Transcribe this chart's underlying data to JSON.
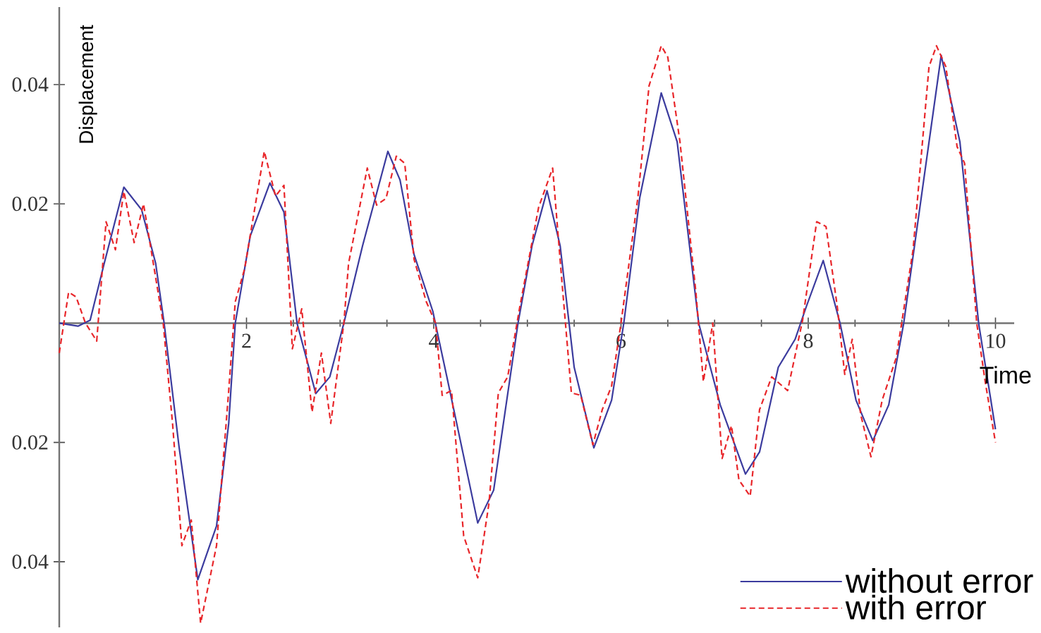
{
  "chart_data": {
    "type": "line",
    "xlabel": "Time",
    "ylabel": "Displacement",
    "xlim": [
      0,
      10.2
    ],
    "ylim": [
      -0.051,
      0.053
    ],
    "xticks": [
      2,
      4,
      6,
      8,
      10
    ],
    "yticks": [
      {
        "value": -0.04,
        "label": "0.04"
      },
      {
        "value": -0.02,
        "label": "0.02"
      },
      0.02,
      0.04
    ],
    "legend": "bottom right",
    "grid": false,
    "marker": "none",
    "series": [
      {
        "name": "without error",
        "color": "#3b3b9e",
        "line_style": "solid",
        "x": [
          0,
          0.2,
          0.33,
          0.48,
          0.69,
          0.88,
          1.03,
          1.12,
          1.28,
          1.48,
          1.68,
          1.81,
          1.88,
          2.04,
          2.25,
          2.4,
          2.54,
          2.74,
          2.89,
          3.04,
          3.24,
          3.51,
          3.64,
          3.79,
          3.99,
          4.14,
          4.47,
          4.64,
          4.9,
          5.05,
          5.21,
          5.35,
          5.5,
          5.71,
          5.9,
          6.03,
          6.2,
          6.43,
          6.6,
          6.83,
          7.06,
          7.33,
          7.48,
          7.68,
          7.86,
          7.98,
          8.16,
          8.34,
          8.51,
          8.69,
          8.86,
          9.02,
          9.22,
          9.42,
          9.62,
          9.82,
          10.0
        ],
        "values": [
          0,
          -0.0005,
          0.0005,
          0.01,
          0.0228,
          0.019,
          0.01,
          0,
          -0.0208,
          -0.043,
          -0.034,
          -0.0168,
          0,
          0.0146,
          0.0235,
          0.0186,
          0,
          -0.0118,
          -0.009,
          0,
          0.013,
          0.0288,
          0.024,
          0.0115,
          0.002,
          -0.009,
          -0.0335,
          -0.028,
          0,
          0.013,
          0.0222,
          0.013,
          -0.0074,
          -0.0209,
          -0.0129,
          0,
          0.021,
          0.0386,
          0.0304,
          0,
          -0.0137,
          -0.0253,
          -0.0216,
          -0.0074,
          -0.0027,
          0.0028,
          0.0105,
          0,
          -0.0129,
          -0.0197,
          -0.0137,
          0,
          0.0225,
          0.0449,
          0.0304,
          0,
          -0.0178
        ]
      },
      {
        "name": "with error",
        "color": "#e8262a",
        "line_style": "dashed",
        "x": [
          0,
          0.1,
          0.18,
          0.28,
          0.4,
          0.5,
          0.6,
          0.69,
          0.8,
          0.9,
          1.11,
          1.21,
          1.31,
          1.41,
          1.51,
          1.68,
          1.81,
          1.88,
          1.98,
          2.19,
          2.31,
          2.4,
          2.49,
          2.59,
          2.7,
          2.8,
          2.9,
          3.04,
          3.09,
          3.29,
          3.39,
          3.49,
          3.6,
          3.69,
          3.79,
          3.92,
          4.02,
          4.09,
          4.19,
          4.32,
          4.47,
          4.59,
          4.69,
          4.79,
          4.92,
          5.12,
          5.27,
          5.37,
          5.47,
          5.57,
          5.7,
          5.8,
          5.9,
          6.0,
          6.18,
          6.3,
          6.43,
          6.5,
          6.63,
          6.7,
          6.8,
          6.88,
          6.98,
          7.08,
          7.18,
          7.26,
          7.38,
          7.48,
          7.61,
          7.78,
          7.94,
          8.09,
          8.19,
          8.31,
          8.39,
          8.47,
          8.56,
          8.67,
          8.79,
          8.94,
          9.12,
          9.29,
          9.37,
          9.47,
          9.59,
          9.67,
          9.8,
          9.89,
          10.0
        ],
        "values": [
          -0.005,
          0.0052,
          0.0044,
          0,
          -0.003,
          0.017,
          0.0123,
          0.0221,
          0.0135,
          0.02,
          0,
          -0.0168,
          -0.0373,
          -0.033,
          -0.0503,
          -0.0373,
          -0.0113,
          0.0036,
          0.0091,
          0.0288,
          0.0213,
          0.0231,
          -0.0043,
          0.0024,
          -0.0149,
          -0.005,
          -0.0168,
          0,
          0.01,
          0.026,
          0.0198,
          0.0209,
          0.028,
          0.0268,
          0.0107,
          0.0036,
          0,
          -0.0121,
          -0.0113,
          -0.0357,
          -0.0427,
          -0.0302,
          -0.0117,
          -0.009,
          0.0028,
          0.0194,
          0.026,
          0.0068,
          -0.0117,
          -0.0121,
          -0.0204,
          -0.0145,
          -0.0105,
          0,
          0.021,
          0.0398,
          0.0465,
          0.0446,
          0.0304,
          0.02,
          0.0052,
          -0.0098,
          0,
          -0.0227,
          -0.0172,
          -0.0263,
          -0.029,
          -0.0145,
          -0.009,
          -0.0113,
          0.0005,
          0.017,
          0.0162,
          0.0028,
          -0.0086,
          -0.0027,
          -0.0153,
          -0.0224,
          -0.0129,
          -0.0058,
          0.0123,
          0.043,
          0.0465,
          0.043,
          0.0296,
          0.0268,
          0,
          -0.0098,
          -0.02
        ]
      }
    ]
  }
}
